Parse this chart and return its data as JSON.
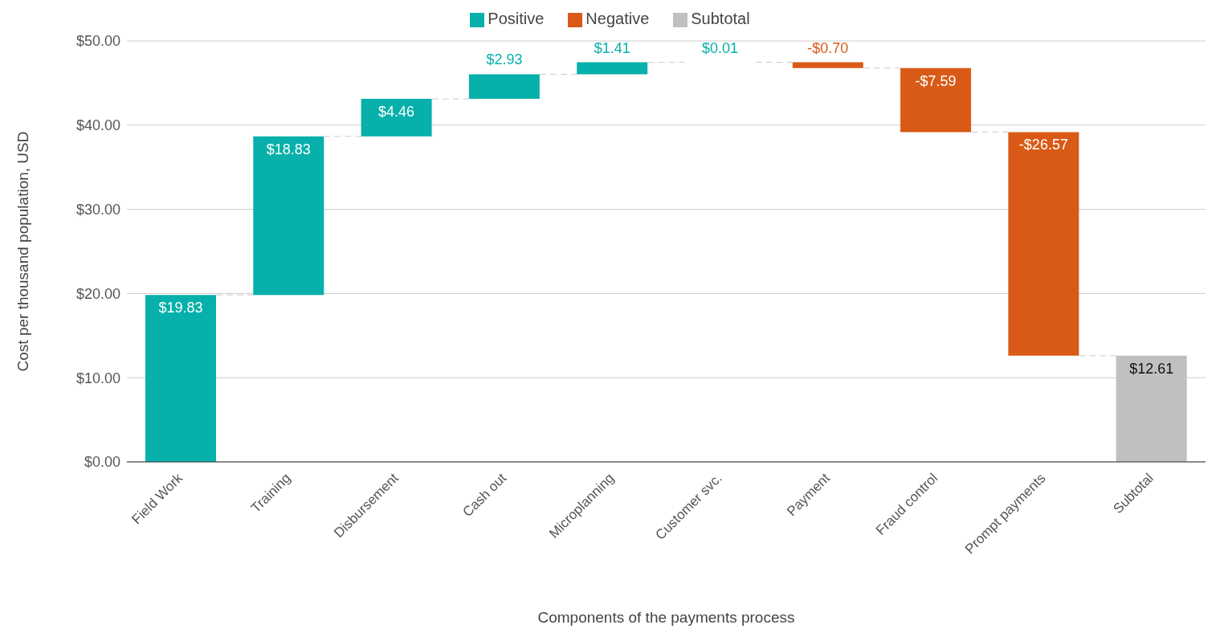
{
  "chart_data": {
    "type": "bar",
    "xlabel": "Components of the payments process",
    "ylabel": "Cost per thousand population, USD",
    "categories": [
      "Field Work",
      "Training",
      "Disbursement",
      "Cash out",
      "Microplanning",
      "Customer svc.",
      "Payment",
      "Fraud control",
      "Prompt payments",
      "Subtotal"
    ],
    "series": [
      {
        "name": "Positive",
        "color": "#07b0aa",
        "base": [
          0,
          19.83,
          38.66,
          43.12,
          46.05,
          47.46,
          null,
          null,
          null,
          null
        ],
        "values": [
          19.83,
          18.83,
          4.46,
          2.93,
          1.41,
          0.01,
          null,
          null,
          null,
          null
        ],
        "value_labels": [
          "$19.83",
          "$18.83",
          "$4.46",
          "$2.93",
          "$1.41",
          "$0.01",
          null,
          null,
          null,
          null
        ]
      },
      {
        "name": "Negative",
        "color": "#d95a16",
        "base": [
          null,
          null,
          null,
          null,
          null,
          null,
          47.47,
          46.77,
          39.18,
          null
        ],
        "values": [
          null,
          null,
          null,
          null,
          null,
          null,
          -0.7,
          -7.59,
          -26.57,
          null
        ],
        "value_labels": [
          null,
          null,
          null,
          null,
          null,
          null,
          "-$0.70",
          "-$7.59",
          "-$26.57",
          null
        ]
      },
      {
        "name": "Subtotal",
        "color": "#c0c0c0",
        "base": [
          null,
          null,
          null,
          null,
          null,
          null,
          null,
          null,
          null,
          0
        ],
        "values": [
          null,
          null,
          null,
          null,
          null,
          null,
          null,
          null,
          null,
          12.61
        ],
        "value_labels": [
          null,
          null,
          null,
          null,
          null,
          null,
          null,
          null,
          null,
          "$12.61"
        ]
      }
    ],
    "ylim": [
      0,
      50
    ],
    "yticks": [
      {
        "value": 0,
        "label": "$0.00"
      },
      {
        "value": 10,
        "label": "$10.00"
      },
      {
        "value": 20,
        "label": "$20.00"
      },
      {
        "value": 30,
        "label": "$30.00"
      },
      {
        "value": 40,
        "label": "$40.00"
      },
      {
        "value": 50,
        "label": "$50.00"
      }
    ],
    "grid": "y",
    "legend": "top"
  }
}
